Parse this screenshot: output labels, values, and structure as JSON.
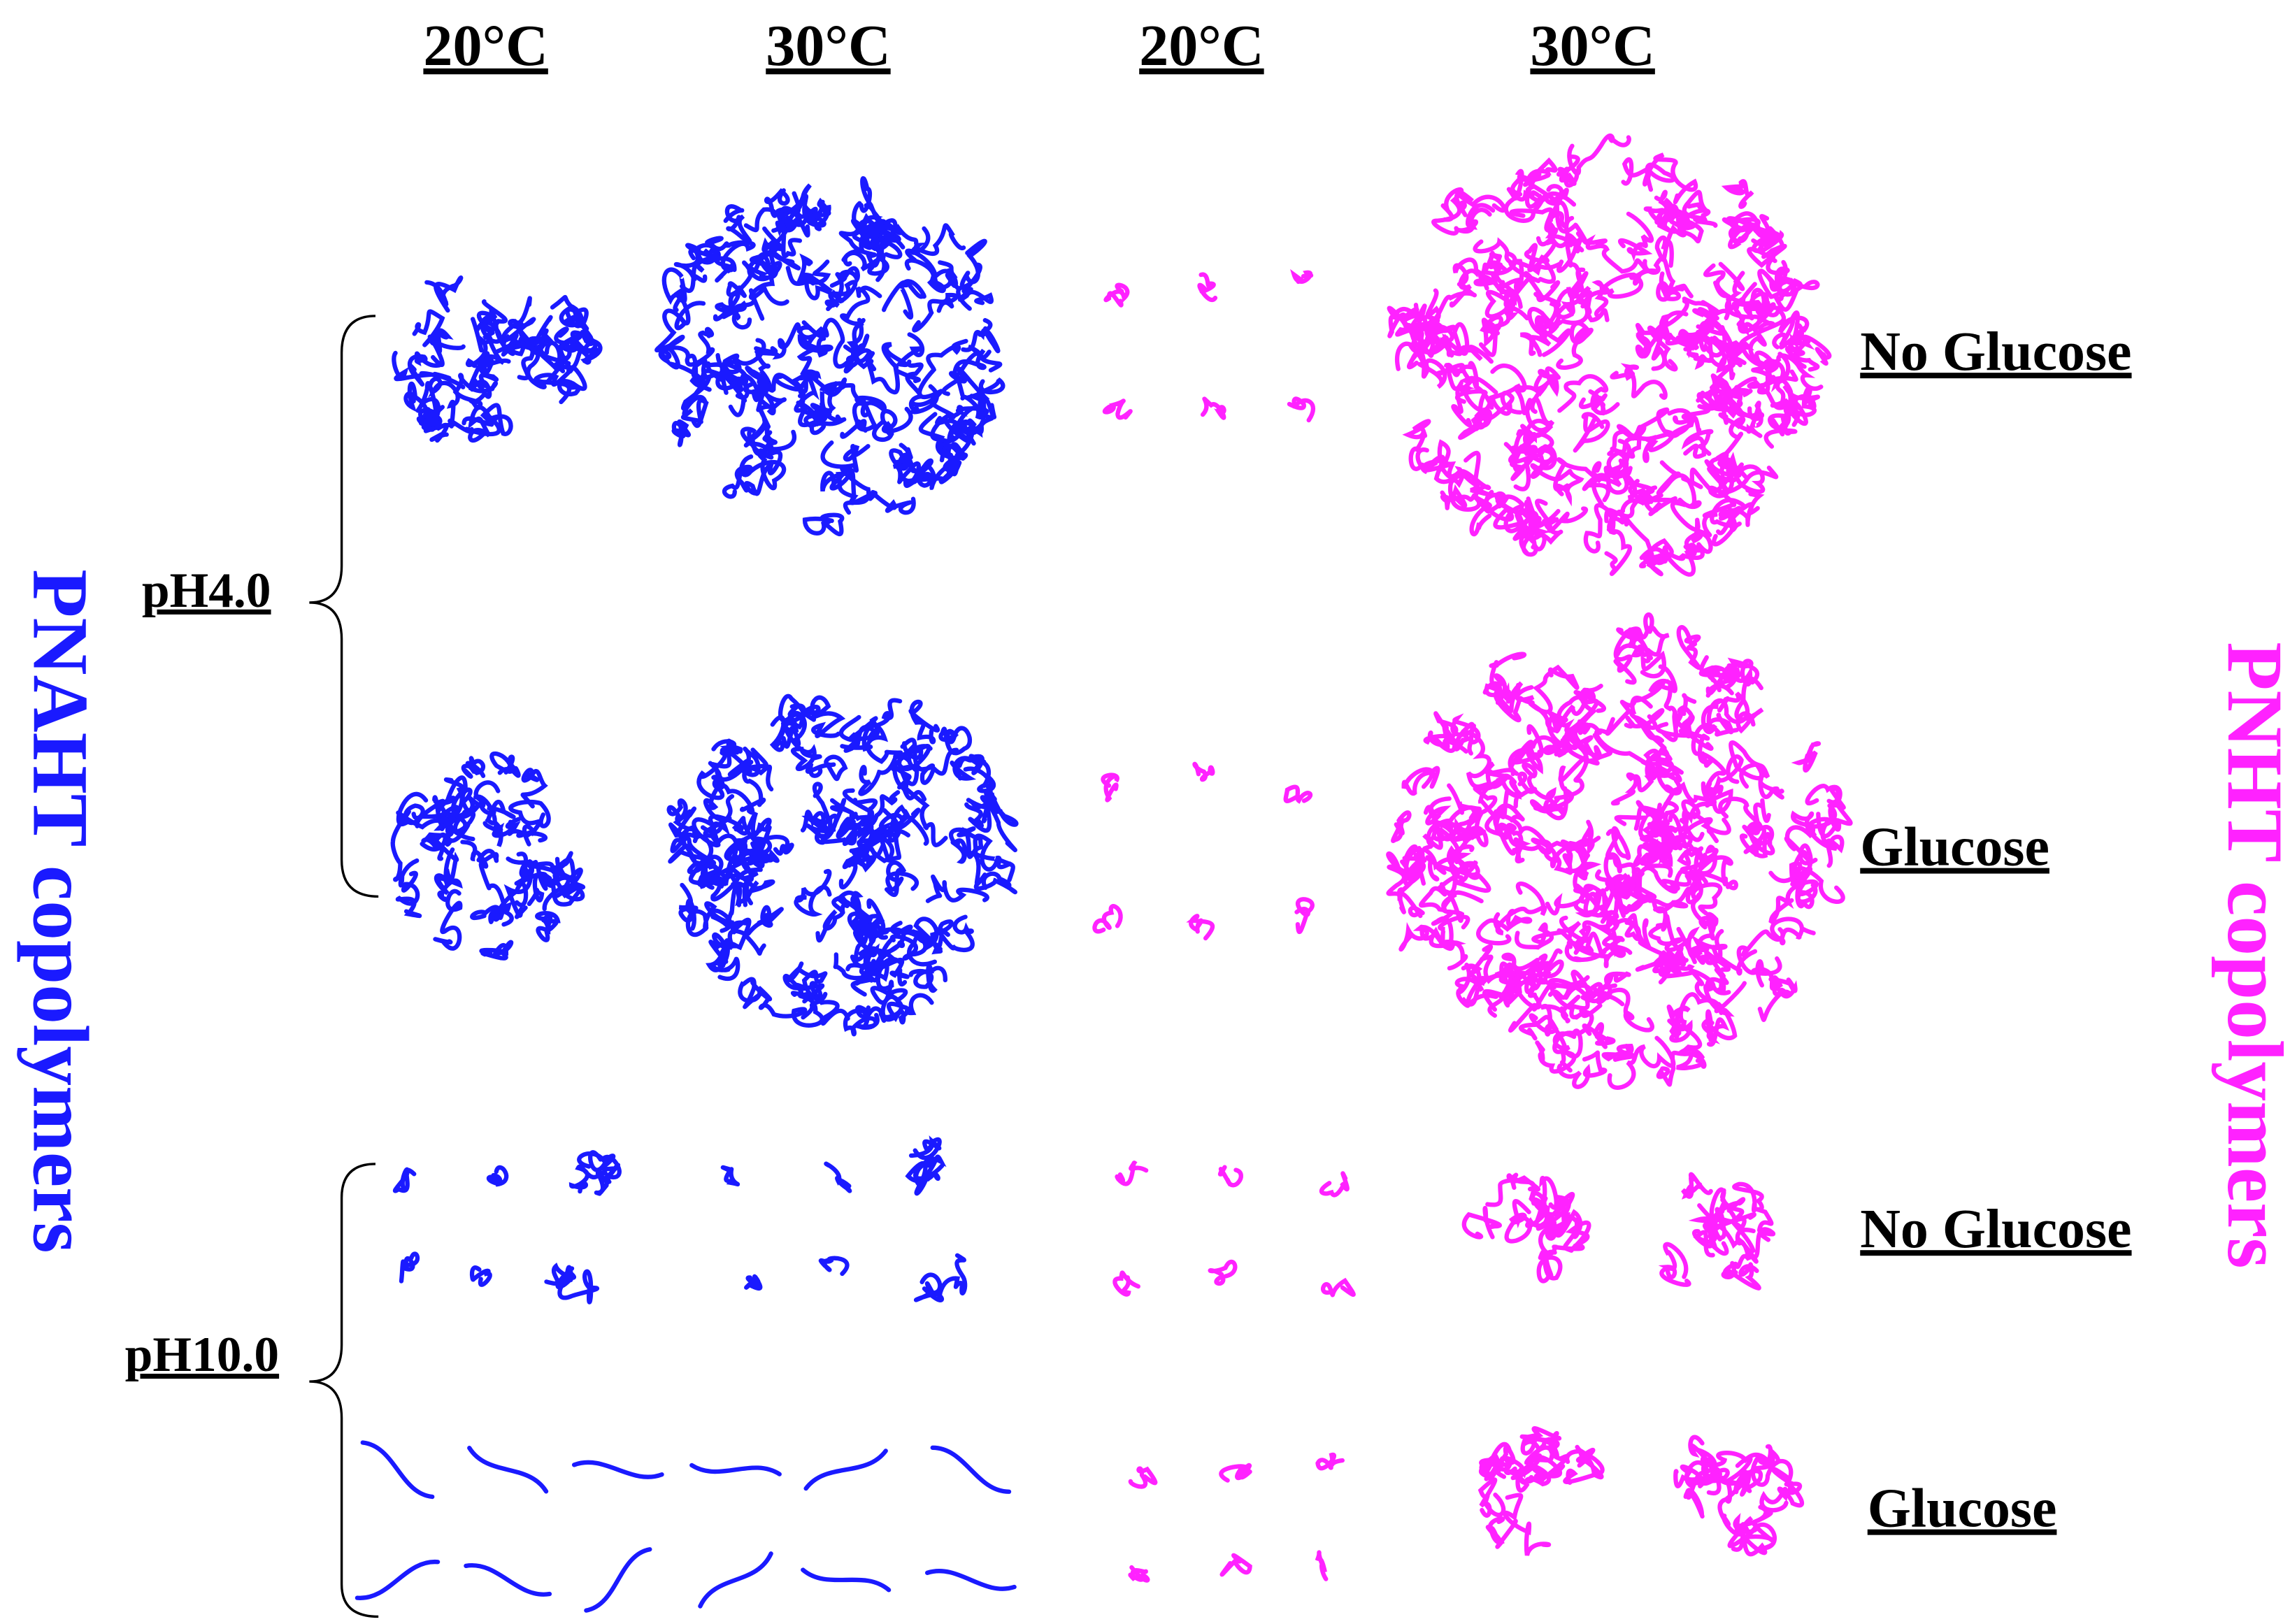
{
  "header": {
    "columns": [
      "20°C",
      "30°C",
      "20°C",
      "30°C"
    ]
  },
  "conditions": [
    "No Glucose",
    "Glucose",
    "No Glucose",
    "Glucose"
  ],
  "ph_groups": [
    "pH4.0",
    "pH10.0"
  ],
  "side_labels": {
    "left": "PNAHT copolymers",
    "right": "PNHT copolymers"
  }
}
